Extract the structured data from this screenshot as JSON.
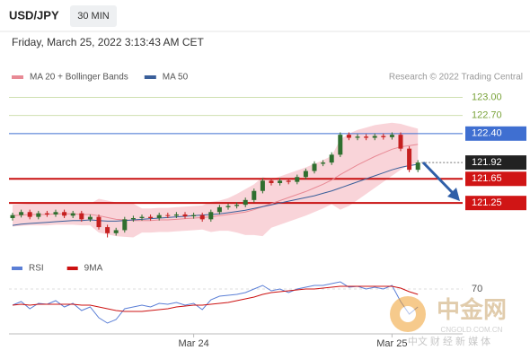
{
  "header": {
    "symbol": "USD/JPY",
    "timeframe": "30 MIN",
    "timestamp": "Friday, March 25, 2022 3:13:43 AM CET",
    "credit": "Research © 2022 Trading Central"
  },
  "watermark": {
    "name": "中金网",
    "domain": "CNGOLD.COM.CN",
    "tagline": "中文 财 经 新 媒 体"
  },
  "chart_data": [
    {
      "type": "candlestick",
      "categories": [
        null,
        null,
        null,
        null,
        null,
        null,
        null,
        null,
        null,
        null,
        null,
        null,
        null,
        null,
        null,
        null,
        null,
        null,
        null,
        null,
        null,
        "Mar 24",
        null,
        null,
        null,
        null,
        null,
        null,
        null,
        null,
        null,
        null,
        null,
        null,
        null,
        null,
        null,
        null,
        null,
        null,
        null,
        null,
        null,
        null,
        "Mar 25",
        null,
        null,
        null
      ],
      "open": [
        121.0,
        121.05,
        121.1,
        121.02,
        121.08,
        121.06,
        121.1,
        121.04,
        121.08,
        120.98,
        121.02,
        120.85,
        120.75,
        120.8,
        120.98,
        121.0,
        121.02,
        121.0,
        121.05,
        121.04,
        121.06,
        121.03,
        121.05,
        120.98,
        121.1,
        121.18,
        121.2,
        121.22,
        121.3,
        121.45,
        121.62,
        121.58,
        121.62,
        121.6,
        121.68,
        121.78,
        121.9,
        121.92,
        122.05,
        122.38,
        122.33,
        122.35,
        122.33,
        122.36,
        122.34,
        122.38,
        122.15,
        121.8
      ],
      "high": [
        121.09,
        121.14,
        121.14,
        121.12,
        121.12,
        121.14,
        121.14,
        121.12,
        121.12,
        121.06,
        121.06,
        120.89,
        120.84,
        121.02,
        121.04,
        121.06,
        121.06,
        121.09,
        121.09,
        121.1,
        121.1,
        121.09,
        121.09,
        121.14,
        121.22,
        121.24,
        121.26,
        121.34,
        121.49,
        121.66,
        121.66,
        121.66,
        121.66,
        121.72,
        121.82,
        121.94,
        121.96,
        122.09,
        122.42,
        122.42,
        122.39,
        122.39,
        122.4,
        122.4,
        122.42,
        122.42,
        122.19,
        121.96
      ],
      "low": [
        120.96,
        121.01,
        120.98,
        120.98,
        121.02,
        121.02,
        121.0,
        121.0,
        120.94,
        120.94,
        120.81,
        120.68,
        120.71,
        120.76,
        120.94,
        120.96,
        120.96,
        120.96,
        121.0,
        121.0,
        120.99,
        120.99,
        120.94,
        120.94,
        121.06,
        121.14,
        121.16,
        121.18,
        121.26,
        121.41,
        121.54,
        121.54,
        121.56,
        121.56,
        121.64,
        121.74,
        121.86,
        121.88,
        122.01,
        122.29,
        122.29,
        122.29,
        122.29,
        122.3,
        122.3,
        122.11,
        121.76,
        121.76
      ],
      "close": [
        121.05,
        121.1,
        121.02,
        121.08,
        121.06,
        121.1,
        121.04,
        121.08,
        120.98,
        121.02,
        120.85,
        120.75,
        120.8,
        120.98,
        121.0,
        121.02,
        121.0,
        121.05,
        121.04,
        121.06,
        121.03,
        121.05,
        120.98,
        121.1,
        121.18,
        121.2,
        121.22,
        121.3,
        121.45,
        121.62,
        121.58,
        121.62,
        121.6,
        121.68,
        121.78,
        121.9,
        121.92,
        122.05,
        122.38,
        122.33,
        122.35,
        122.33,
        122.36,
        122.34,
        122.38,
        122.15,
        121.8,
        121.92
      ],
      "up_color": "#2f6f2f",
      "down_color": "#c62020",
      "series": [
        {
          "name": "MA 20 + Bollinger Bands",
          "color": "#e88a95",
          "band_color": "#f7c9cf",
          "values": [
            121.04,
            121.05,
            121.06,
            121.06,
            121.06,
            121.07,
            121.07,
            121.07,
            121.06,
            121.06,
            121.04,
            121.01,
            120.98,
            120.97,
            120.96,
            120.96,
            120.96,
            120.97,
            120.97,
            120.98,
            120.99,
            121.0,
            121.01,
            121.02,
            121.04,
            121.06,
            121.08,
            121.1,
            121.14,
            121.19,
            121.24,
            121.29,
            121.34,
            121.39,
            121.44,
            121.5,
            121.56,
            121.63,
            121.72,
            121.8,
            121.88,
            121.95,
            122.02,
            122.08,
            122.14,
            122.18,
            122.2,
            122.22
          ],
          "upper": [
            121.22,
            121.23,
            121.24,
            121.24,
            121.24,
            121.25,
            121.25,
            121.25,
            121.24,
            121.24,
            121.32,
            121.29,
            121.26,
            121.25,
            121.24,
            121.16,
            121.16,
            121.17,
            121.17,
            121.18,
            121.19,
            121.2,
            121.21,
            121.27,
            121.29,
            121.33,
            121.4,
            121.48,
            121.56,
            121.68,
            121.64,
            121.69,
            121.74,
            121.79,
            121.84,
            121.9,
            121.96,
            122.03,
            122.3,
            122.4,
            122.46,
            122.5,
            122.54,
            122.56,
            122.58,
            122.56,
            122.52,
            122.48
          ],
          "lower": [
            120.86,
            120.87,
            120.88,
            120.88,
            120.88,
            120.89,
            120.89,
            120.89,
            120.88,
            120.88,
            120.76,
            120.73,
            120.7,
            120.69,
            120.68,
            120.76,
            120.76,
            120.77,
            120.77,
            120.78,
            120.79,
            120.8,
            120.81,
            120.77,
            120.79,
            120.79,
            120.76,
            120.72,
            120.72,
            120.7,
            120.84,
            120.89,
            120.94,
            120.99,
            121.04,
            121.1,
            121.16,
            121.23,
            121.14,
            121.2,
            121.3,
            121.4,
            121.5,
            121.6,
            121.7,
            121.8,
            121.88,
            121.92
          ]
        },
        {
          "name": "MA 50",
          "color": "#3a5f9a",
          "values": [
            120.88,
            120.9,
            120.91,
            120.92,
            120.93,
            120.94,
            120.95,
            120.96,
            120.96,
            120.97,
            120.96,
            120.95,
            120.95,
            120.96,
            120.97,
            120.98,
            120.99,
            121.0,
            121.01,
            121.02,
            121.03,
            121.04,
            121.05,
            121.06,
            121.07,
            121.09,
            121.11,
            121.13,
            121.16,
            121.19,
            121.22,
            121.25,
            121.28,
            121.31,
            121.34,
            121.37,
            121.41,
            121.45,
            121.5,
            121.55,
            121.6,
            121.65,
            121.7,
            121.75,
            121.8,
            121.84,
            121.87,
            121.89
          ]
        }
      ],
      "levels": [
        {
          "value": 123.0,
          "label": "123.00",
          "color": "#7aa33a",
          "boxed": false,
          "line": "solid",
          "line_color": "#cfe0b0",
          "line_width": 1
        },
        {
          "value": 122.7,
          "label": "122.70",
          "color": "#7aa33a",
          "boxed": false,
          "line": "solid",
          "line_color": "#cfe0b0",
          "line_width": 1
        },
        {
          "value": 122.4,
          "label": "122.40",
          "color": "#3f6fd1",
          "boxed": true,
          "line": "solid",
          "line_color": "#3f6fd1",
          "line_width": 1
        },
        {
          "value": 121.92,
          "label": "121.92",
          "color": "#222222",
          "boxed": true,
          "line": "dotted",
          "line_color": "#777777",
          "line_width": 1
        },
        {
          "value": 121.65,
          "label": "121.65",
          "color": "#d01515",
          "boxed": true,
          "line": "solid",
          "line_color": "#c81010",
          "line_width": 2
        },
        {
          "value": 121.25,
          "label": "121.25",
          "color": "#d01515",
          "boxed": true,
          "line": "solid",
          "line_color": "#c81010",
          "line_width": 2
        }
      ],
      "ylim": [
        120.45,
        123.2
      ]
    },
    {
      "type": "line",
      "series": [
        {
          "name": "RSI",
          "color": "#5b7fd6",
          "values": [
            52,
            56,
            48,
            54,
            53,
            57,
            50,
            54,
            46,
            50,
            38,
            32,
            36,
            48,
            50,
            52,
            50,
            54,
            53,
            55,
            52,
            54,
            47,
            58,
            62,
            63,
            64,
            66,
            70,
            74,
            68,
            70,
            66,
            70,
            72,
            74,
            74,
            76,
            78,
            72,
            73,
            70,
            72,
            70,
            74,
            56,
            42,
            50
          ]
        },
        {
          "name": "9MA",
          "color": "#cc1111",
          "values": [
            52,
            53,
            52,
            53,
            53,
            53,
            53,
            53,
            52,
            52,
            50,
            48,
            46,
            45,
            45,
            45,
            46,
            47,
            48,
            50,
            51,
            52,
            52,
            53,
            54,
            55,
            57,
            59,
            61,
            64,
            66,
            67,
            68,
            69,
            70,
            70,
            71,
            72,
            73,
            73,
            73,
            73,
            73,
            73,
            73,
            71,
            67,
            64
          ]
        }
      ],
      "ylim": [
        20,
        85
      ],
      "yticks": [
        70
      ]
    }
  ]
}
